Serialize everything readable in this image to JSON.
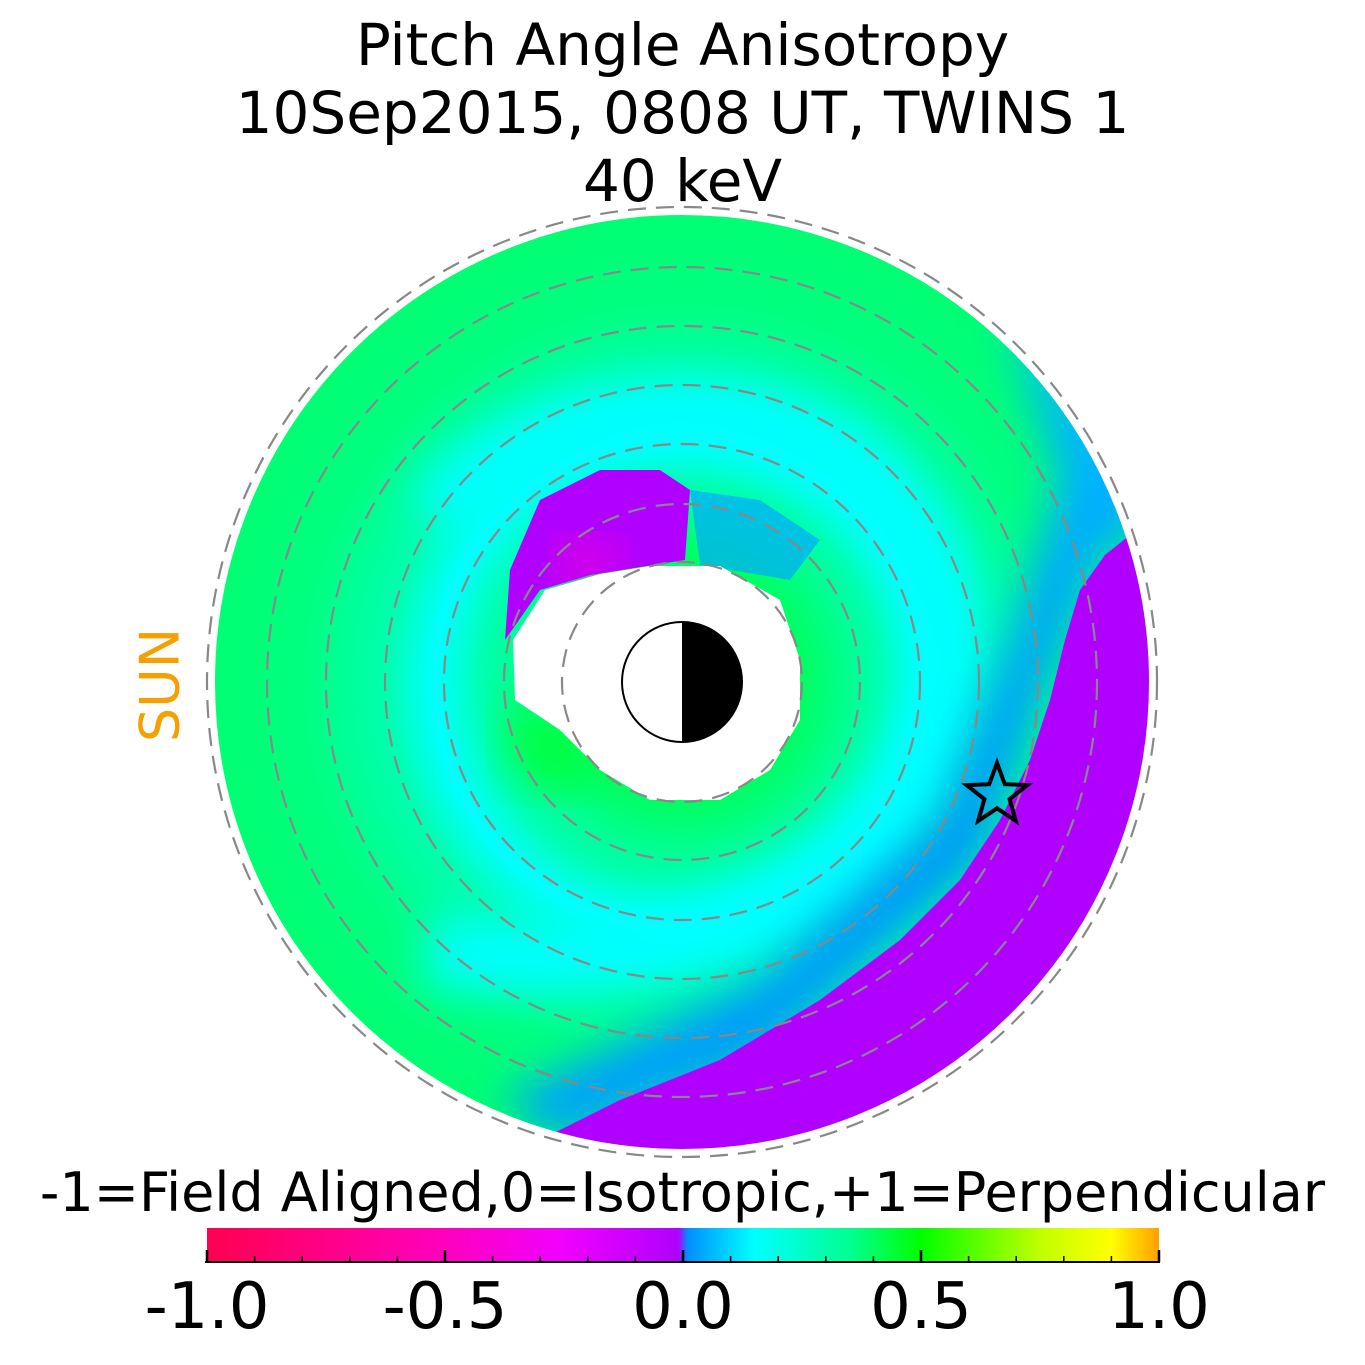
{
  "chart_data": {
    "type": "heatmap",
    "title": "Pitch Angle Anisotropy",
    "subtitle": "10Sep2015, 0808 UT,  TWINS 1",
    "subtitle2": "40 keV",
    "side_label": "SUN",
    "colorbar": {
      "label": "-1=Field Aligned,0=Isotropic,+1=Perpendicular",
      "range": [
        -1.0,
        1.0
      ],
      "ticks": [
        "-1.0",
        "-0.5",
        "0.0",
        "0.5",
        "1.0"
      ],
      "tick_values": [
        -1.0,
        -0.5,
        0.0,
        0.5,
        1.0
      ],
      "stops": [
        {
          "v": -1.0,
          "color": "#FF0050"
        },
        {
          "v": -0.5,
          "color": "#FF00BE"
        },
        {
          "v": -0.25,
          "color": "#F000FF"
        },
        {
          "v": -0.01,
          "color": "#B000FF"
        },
        {
          "v": 0.01,
          "color": "#0090FF"
        },
        {
          "v": 0.15,
          "color": "#00FFFF"
        },
        {
          "v": 0.35,
          "color": "#00FF90"
        },
        {
          "v": 0.5,
          "color": "#00FF00"
        },
        {
          "v": 0.75,
          "color": "#C0FF00"
        },
        {
          "v": 0.9,
          "color": "#FFFF00"
        },
        {
          "v": 1.0,
          "color": "#FFA000"
        }
      ]
    },
    "colors": {
      "perpendicular_region": "#B000FF",
      "blue_band": "#0090FF",
      "cyan_band": "#00FFFF",
      "green_bg": "#00FF80",
      "grid": "#888888",
      "sun_label": "#F5A000"
    },
    "grid": "dashed rings",
    "markers": [
      "earth-symbol",
      "star"
    ]
  }
}
